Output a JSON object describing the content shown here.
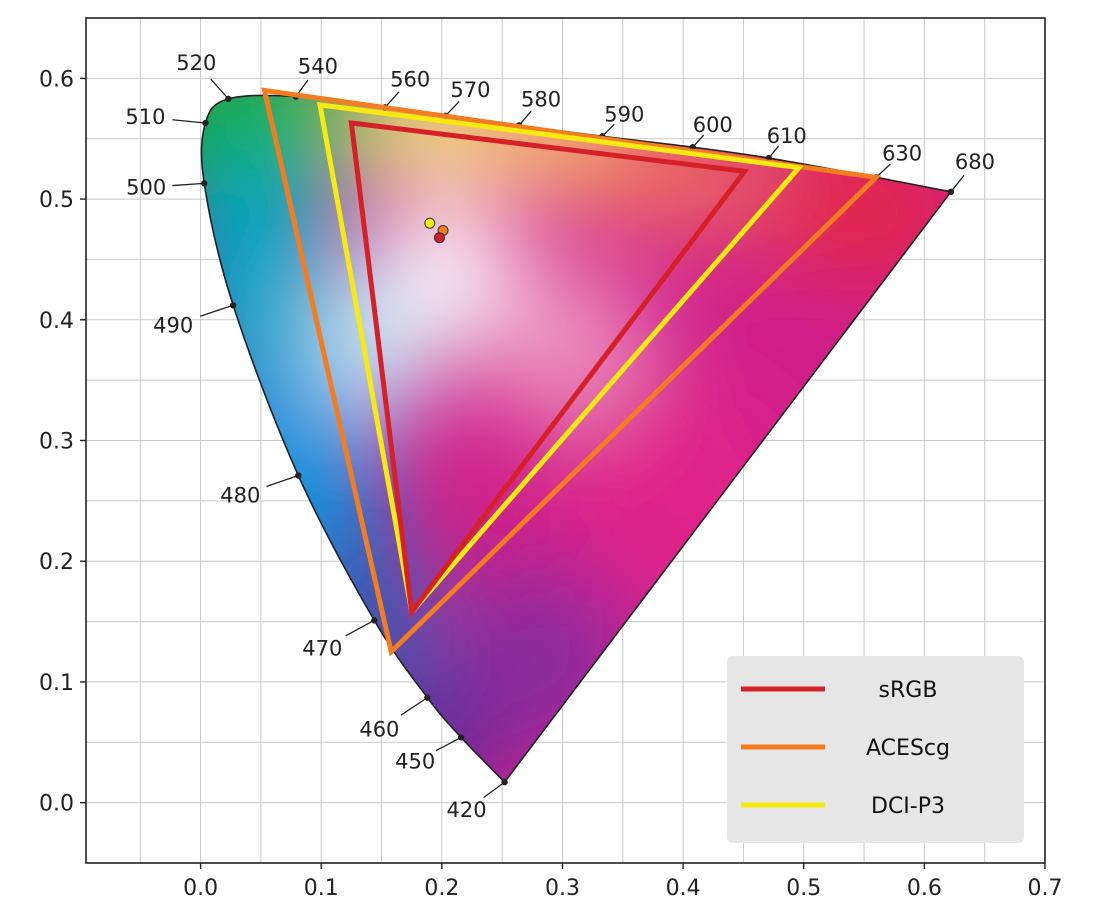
{
  "chart_data": {
    "type": "line",
    "title": "",
    "xlabel": "",
    "ylabel": "",
    "xlim": [
      -0.095,
      0.7
    ],
    "ylim": [
      -0.05,
      0.65
    ],
    "grid": true,
    "minor_grid": true,
    "legend_position": "bottom-right",
    "x_ticks": [
      "0.0",
      "0.1",
      "0.2",
      "0.3",
      "0.4",
      "0.5",
      "0.6",
      "0.7"
    ],
    "y_ticks": [
      "0.0",
      "0.1",
      "0.2",
      "0.3",
      "0.4",
      "0.5",
      "0.6"
    ],
    "spectral_locus": [
      {
        "nm": "420",
        "x": 0.252,
        "y": 0.017
      },
      {
        "nm": "450",
        "x": 0.216,
        "y": 0.054
      },
      {
        "nm": "460",
        "x": 0.188,
        "y": 0.087
      },
      {
        "nm": "470",
        "x": 0.144,
        "y": 0.151
      },
      {
        "nm": "480",
        "x": 0.081,
        "y": 0.271
      },
      {
        "nm": "490",
        "x": 0.027,
        "y": 0.412
      },
      {
        "nm": "500",
        "x": 0.003,
        "y": 0.513
      },
      {
        "nm": "510",
        "x": 0.004,
        "y": 0.563
      },
      {
        "nm": "520",
        "x": 0.023,
        "y": 0.583
      },
      {
        "nm": "540",
        "x": 0.079,
        "y": 0.585
      },
      {
        "nm": "560",
        "x": 0.153,
        "y": 0.576
      },
      {
        "nm": "570",
        "x": 0.203,
        "y": 0.569
      },
      {
        "nm": "580",
        "x": 0.264,
        "y": 0.561
      },
      {
        "nm": "590",
        "x": 0.333,
        "y": 0.552
      },
      {
        "nm": "600",
        "x": 0.408,
        "y": 0.543
      },
      {
        "nm": "610",
        "x": 0.471,
        "y": 0.534
      },
      {
        "nm": "630",
        "x": 0.56,
        "y": 0.518
      },
      {
        "nm": "680",
        "x": 0.622,
        "y": 0.506
      }
    ],
    "series": [
      {
        "name": "sRGB",
        "color": "#d62027",
        "primaries": [
          {
            "x": 0.125,
            "y": 0.563
          },
          {
            "x": 0.451,
            "y": 0.523
          },
          {
            "x": 0.175,
            "y": 0.158
          }
        ],
        "white_point": {
          "x": 0.198,
          "y": 0.468
        }
      },
      {
        "name": "ACEScg",
        "color": "#f47c20",
        "primaries": [
          {
            "x": 0.053,
            "y": 0.59
          },
          {
            "x": 0.56,
            "y": 0.518
          },
          {
            "x": 0.158,
            "y": 0.125
          }
        ],
        "white_point": {
          "x": 0.201,
          "y": 0.474
        }
      },
      {
        "name": "DCI-P3",
        "color": "#f6ea10",
        "primaries": [
          {
            "x": 0.099,
            "y": 0.578
          },
          {
            "x": 0.496,
            "y": 0.526
          },
          {
            "x": 0.175,
            "y": 0.158
          }
        ],
        "white_point": {
          "x": 0.19,
          "y": 0.48
        }
      }
    ]
  },
  "colors": {
    "background": "#ffffff",
    "grid": "#c9c9c9",
    "legend_background": "#e6e6e6"
  }
}
